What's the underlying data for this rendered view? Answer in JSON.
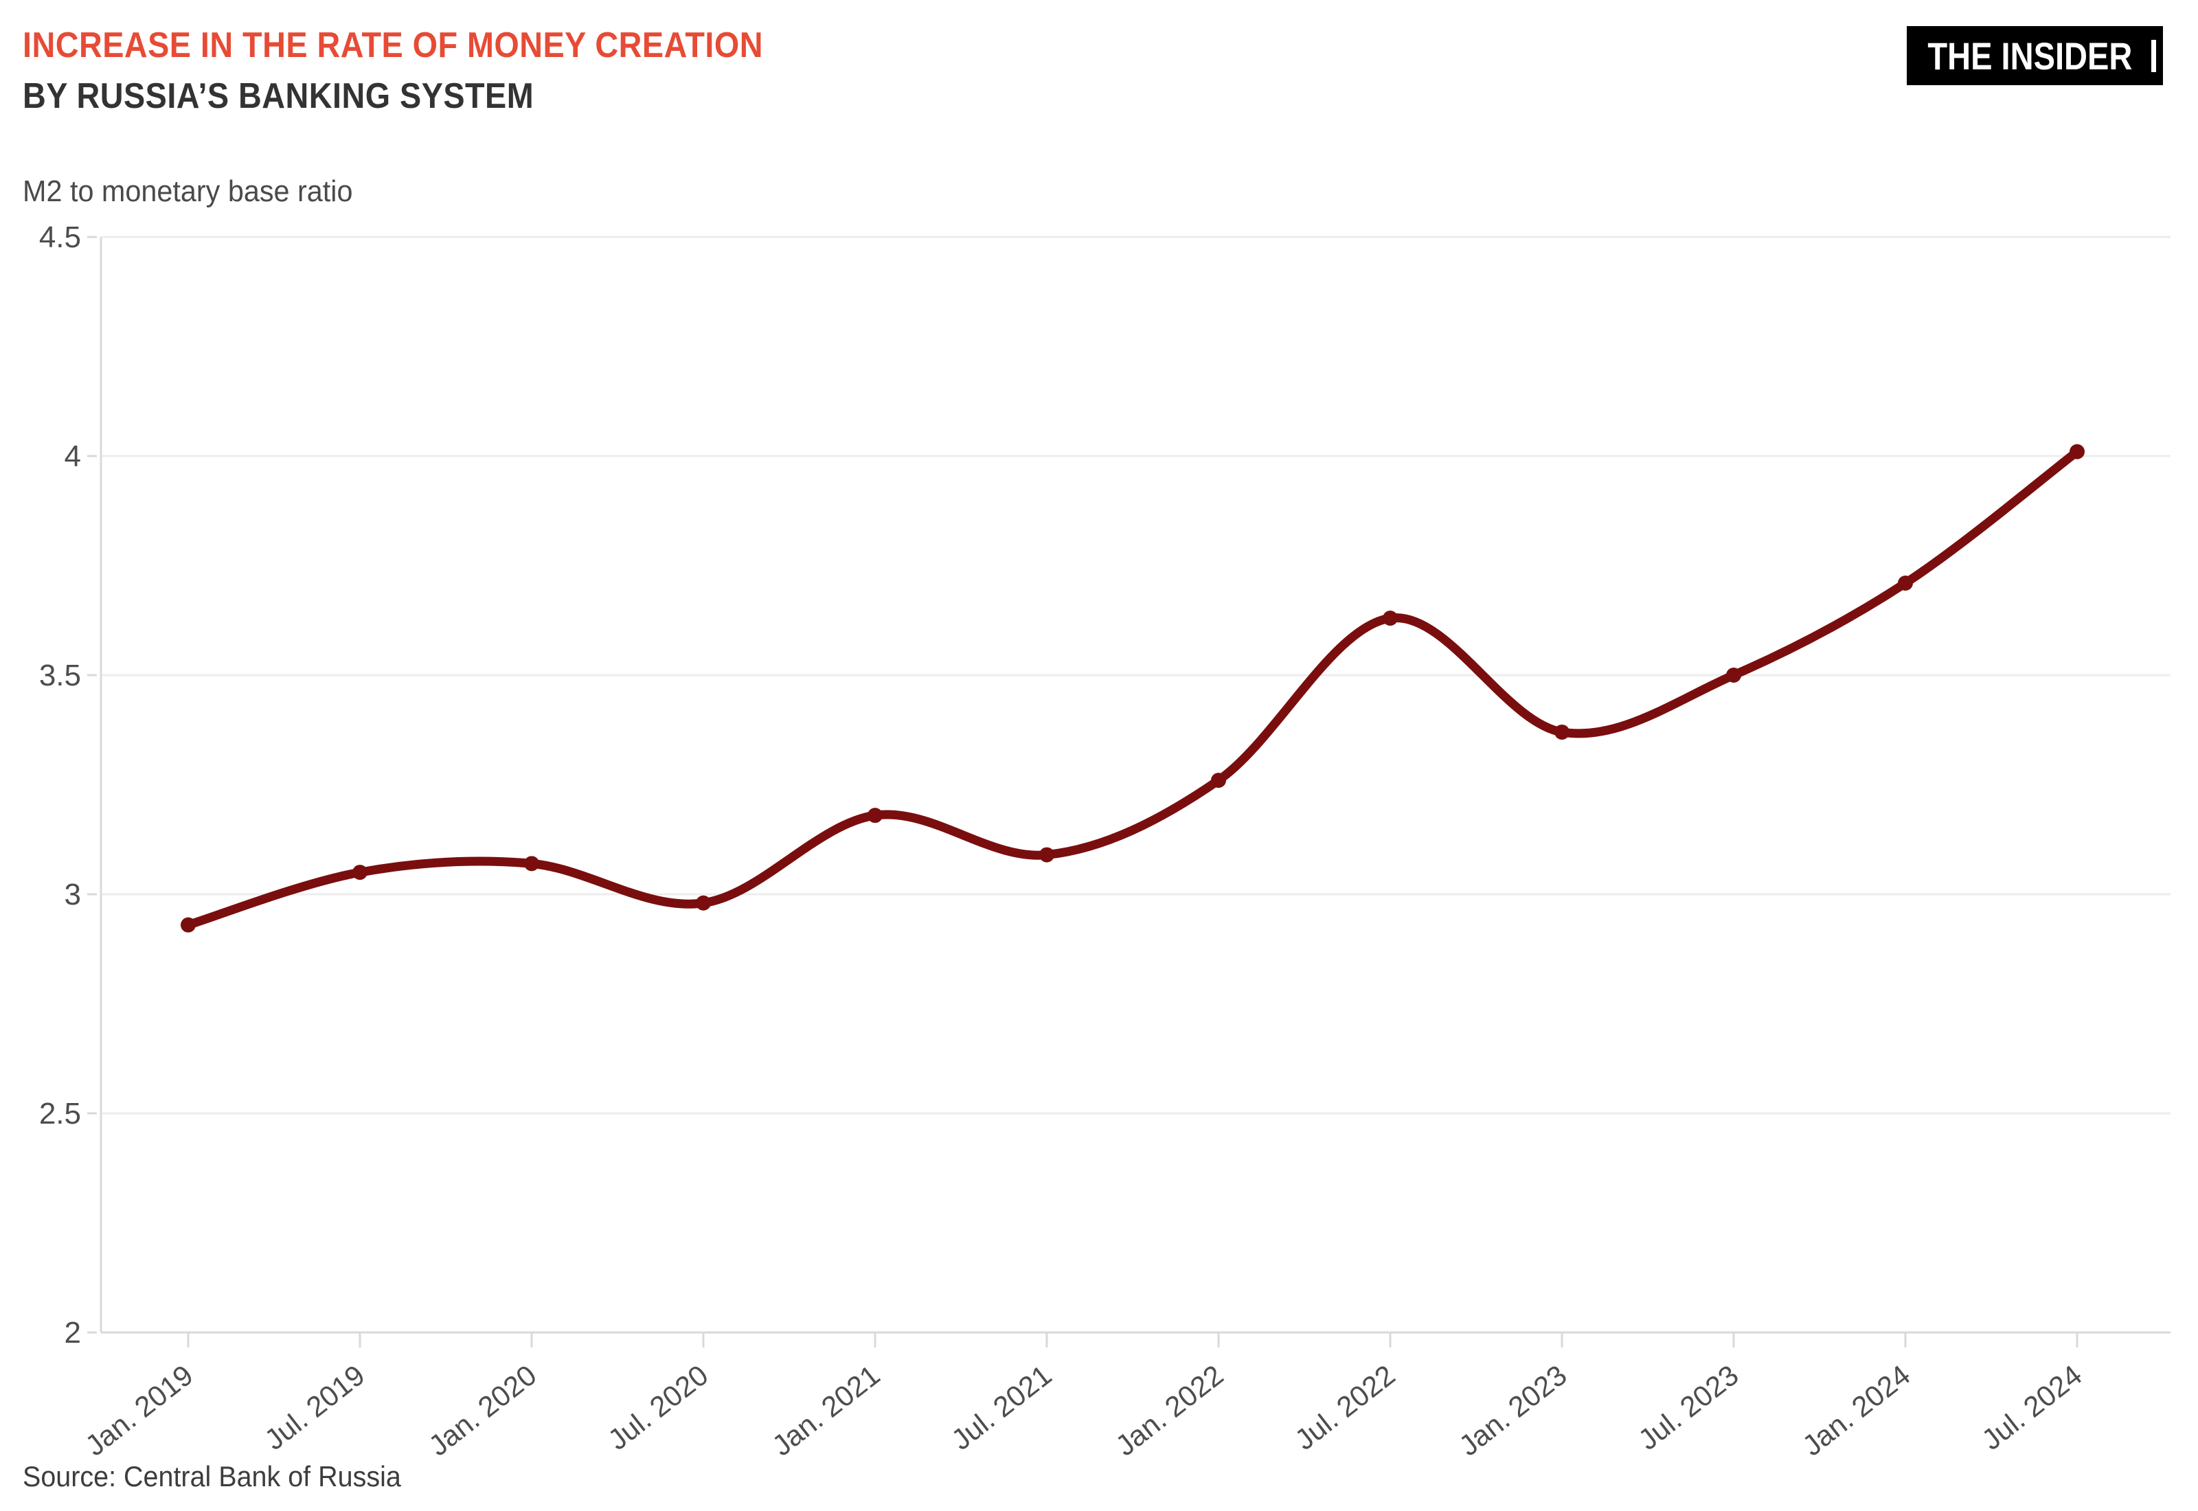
{
  "header": {
    "title_line1": "INCREASE IN THE RATE OF MONEY CREATION",
    "title_line2": "BY RUSSIA’S BANKING SYSTEM",
    "subtitle": "M2 to monetary base ratio"
  },
  "logo": {
    "text": "THE INSIDER"
  },
  "source": "Source: Central Bank of Russia",
  "colors": {
    "accent_red": "#e74b35",
    "title_dark": "#333333",
    "line": "#7a0e0e",
    "grid": "#ededed",
    "axis": "#d9d9d9",
    "label": "#4d4d4d"
  },
  "chart_data": {
    "type": "line",
    "title": "Increase in the rate of money creation by Russia's banking system",
    "ylabel": "M2 to monetary base ratio",
    "xlabel": "",
    "categories": [
      "Jan. 2019",
      "Jul. 2019",
      "Jan. 2020",
      "Jul. 2020",
      "Jan. 2021",
      "Jul. 2021",
      "Jan. 2022",
      "Jul. 2022",
      "Jan. 2023",
      "Jul. 2023",
      "Jan. 2024",
      "Jul. 2024"
    ],
    "values": [
      2.93,
      3.05,
      3.07,
      2.98,
      3.18,
      3.09,
      3.26,
      3.63,
      3.37,
      3.5,
      3.71,
      4.01
    ],
    "ylim": [
      2,
      4.5
    ],
    "yticks": [
      2,
      2.5,
      3,
      3.5,
      4,
      4.5
    ],
    "grid": "horizontal",
    "legend": "none",
    "marker": "circle",
    "smooth": true
  }
}
